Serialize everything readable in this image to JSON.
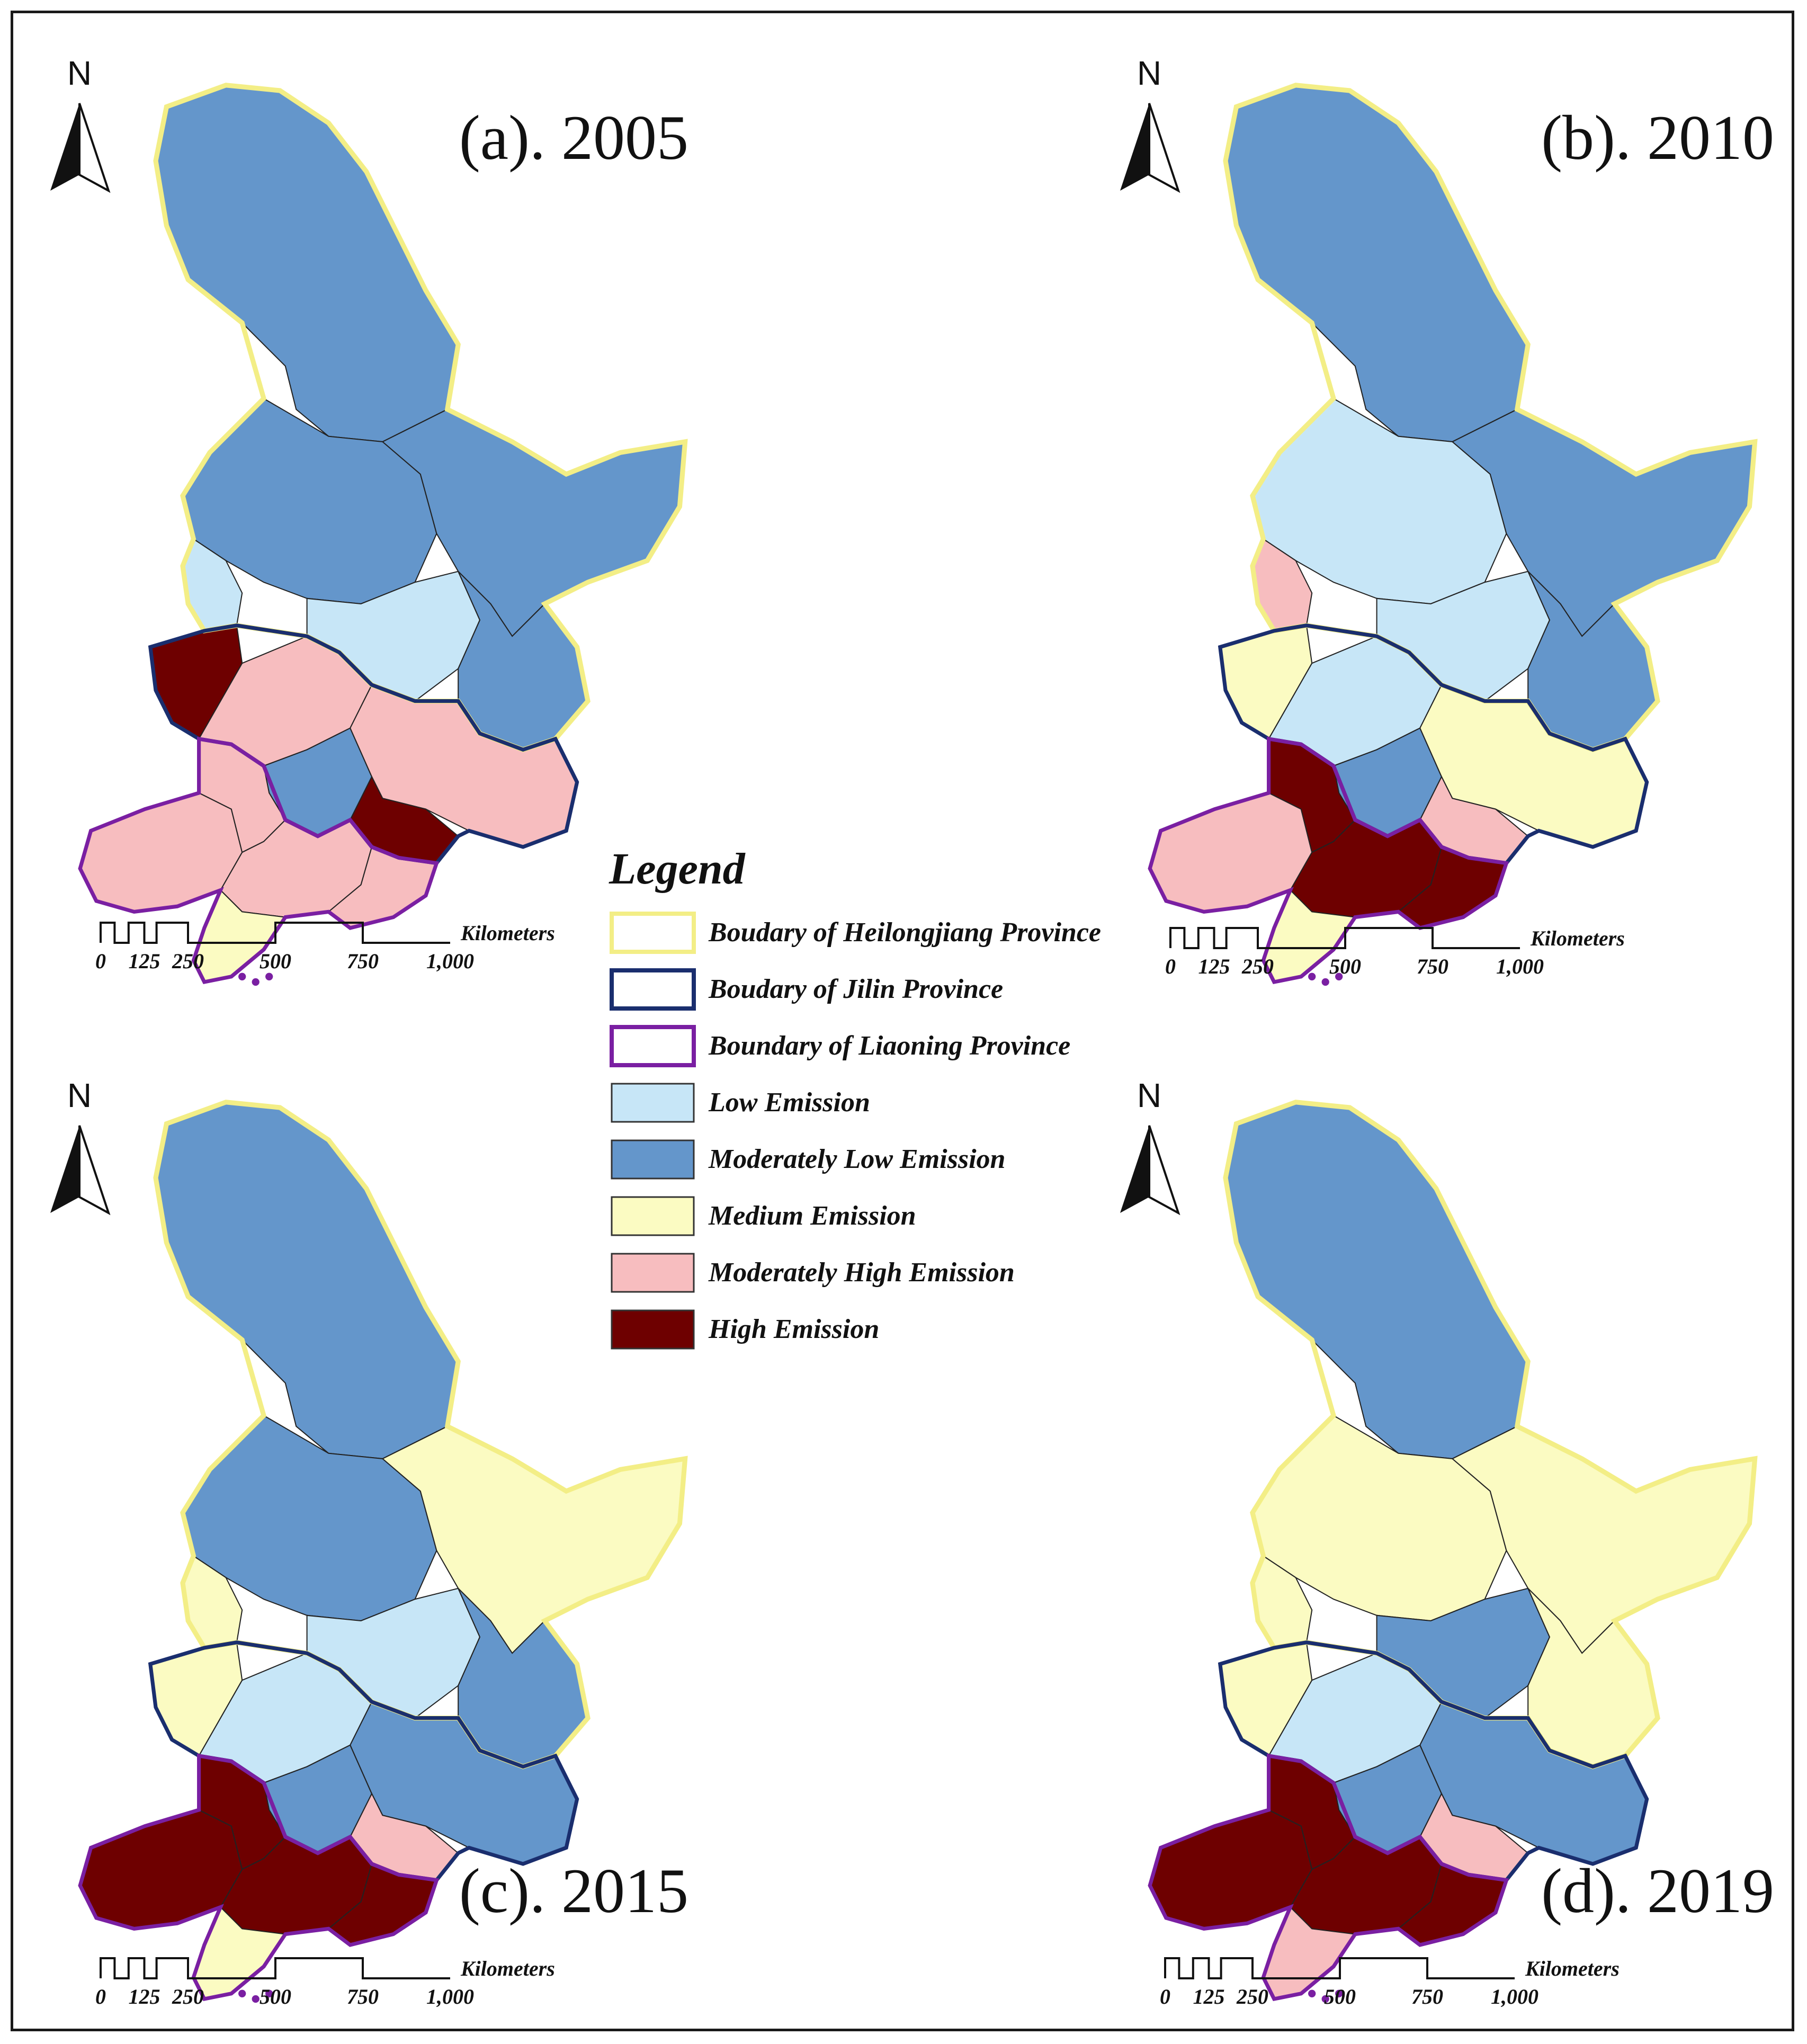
{
  "panels": [
    {
      "title": "(a). 2005"
    },
    {
      "title": "(b). 2010"
    },
    {
      "title": "(c). 2015"
    },
    {
      "title": "(d). 2019"
    }
  ],
  "north_label": "N",
  "scale_bar": {
    "unit": "Kilometers",
    "ticks": [
      "0",
      "125",
      "250",
      "500",
      "750",
      "1,000"
    ]
  },
  "legend": {
    "title": "Legend",
    "items": [
      {
        "label": "Boudary of Heilongjiang Province",
        "kind": "boundary",
        "color": "#F3EE86"
      },
      {
        "label": "Boudary of Jilin Province",
        "kind": "boundary",
        "color": "#1A2E6E"
      },
      {
        "label": "Boundary of Liaoning Province",
        "kind": "boundary",
        "color": "#7A1FA2"
      },
      {
        "label": "Low Emission",
        "kind": "fill",
        "color": "#C7E6F7"
      },
      {
        "label": "Moderately Low Emission",
        "kind": "fill",
        "color": "#6496CB"
      },
      {
        "label": "Medium Emission",
        "kind": "fill",
        "color": "#FBFBC2"
      },
      {
        "label": "Moderately High Emission",
        "kind": "fill",
        "color": "#F7BDBF"
      },
      {
        "label": "High Emission",
        "kind": "fill",
        "color": "#6E0000"
      }
    ]
  },
  "colors": {
    "low": "#C7E6F7",
    "mod_low": "#6496CB",
    "medium": "#FBFBC2",
    "mod_high": "#F7BDBF",
    "high": "#6E0000",
    "heilongjiang_border": "#F3EE86",
    "jilin_border": "#1A2E6E",
    "liaoning_border": "#7A1FA2"
  }
}
